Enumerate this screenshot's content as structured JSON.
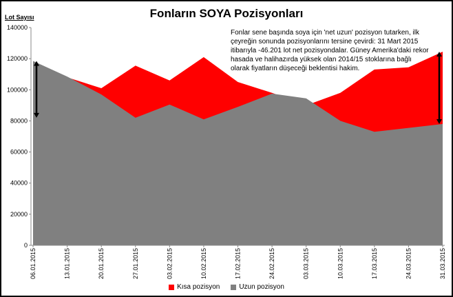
{
  "chart_data": {
    "type": "area",
    "title": "Fonların SOYA Pozisyonları",
    "ylabel": "Lot Sayısı",
    "xlabel": "",
    "ylim": [
      0,
      140000
    ],
    "ytick_step": 20000,
    "y_ticks": [
      "0",
      "20000",
      "40000",
      "60000",
      "80000",
      "100000",
      "120000",
      "140000"
    ],
    "categories": [
      "06.01.2015",
      "13.01.2015",
      "20.01.2015",
      "27.01.2015",
      "03.02.2015",
      "10.02.2015",
      "17.02.2015",
      "24.02.2015",
      "03.03.2015",
      "10.03.2015",
      "17.03.2015",
      "24.03.2015",
      "31.03.2015"
    ],
    "series": [
      {
        "name": "Kısa pozisyon",
        "color": "#ff0000",
        "values": [
          117000,
          108000,
          101000,
          115500,
          106000,
          121000,
          105000,
          98000,
          90000,
          98000,
          113000,
          114500,
          124500
        ]
      },
      {
        "name": "Uzun pozisyon",
        "color": "#808080",
        "values": [
          118500,
          108500,
          97000,
          82000,
          90500,
          81000,
          89000,
          97500,
          94500,
          80000,
          73000,
          75500,
          78000
        ]
      }
    ],
    "annotation": "Fonlar sene başında soya için 'net uzun' pozisyon tutarken, ilk çeyreğin sonunda pozisyonlarını tersine çevirdi: 31 Mart 2015 itibarıyla -46.201 lot net pozisyondalar. Güney Amerika'daki rekor hasada ve halihazırda yüksek olan 2014/15 stoklarına bağlı olarak fiyatların düşeceği beklentisi hakim.",
    "arrows": [
      {
        "category": "06.01.2015",
        "from": 118500,
        "to": 82000
      },
      {
        "category": "31.03.2015",
        "from": 78000,
        "to": 124500
      }
    ],
    "grid": false,
    "legend_position": "bottom"
  }
}
